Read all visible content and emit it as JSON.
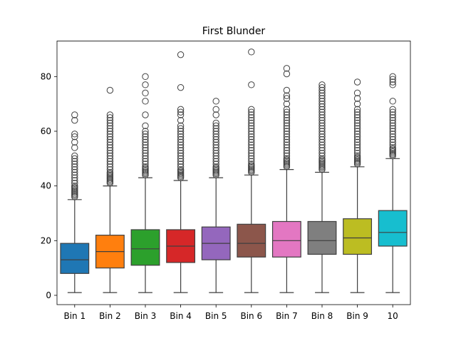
{
  "chart_data": {
    "type": "box",
    "title": "First Blunder",
    "xlabel": "",
    "ylabel": "",
    "ylim": [
      -3.4,
      93.0
    ],
    "yticks": [
      0,
      20,
      40,
      60,
      80
    ],
    "grid": false,
    "categories": [
      "Bin 1",
      "Bin 2",
      "Bin 3",
      "Bin 4",
      "Bin 5",
      "Bin 6",
      "Bin 7",
      "Bin 8",
      "Bin 9",
      "10"
    ],
    "colors": [
      "#1f77b4",
      "#ff7f0e",
      "#2ca02c",
      "#d62728",
      "#9467bd",
      "#8c564b",
      "#e377c2",
      "#7f7f7f",
      "#bcbd22",
      "#17becf"
    ],
    "boxes": [
      {
        "whislo": 1,
        "q1": 8,
        "med": 13,
        "q3": 19,
        "whishi": 35,
        "fliers": [
          36,
          36.5,
          37,
          37.5,
          38,
          38.5,
          39,
          39.5,
          40,
          41,
          42,
          43,
          44,
          45,
          46,
          47,
          48,
          49,
          50,
          51,
          54,
          56,
          58,
          59,
          64,
          66
        ]
      },
      {
        "whislo": 1,
        "q1": 10,
        "med": 16,
        "q3": 22,
        "whishi": 40,
        "fliers": [
          41,
          41.5,
          42,
          42.5,
          43,
          43.5,
          44,
          44.5,
          45,
          46,
          47,
          48,
          49,
          50,
          51,
          52,
          53,
          54,
          55,
          56,
          57,
          58,
          59,
          60,
          61,
          62,
          63,
          64,
          65,
          66,
          75
        ]
      },
      {
        "whislo": 1,
        "q1": 11,
        "med": 17,
        "q3": 24,
        "whishi": 43,
        "fliers": [
          44,
          44.5,
          45,
          45.5,
          46,
          46.5,
          47,
          48,
          49,
          50,
          51,
          52,
          53,
          54,
          55,
          56,
          57,
          58,
          59,
          60,
          62,
          66,
          71,
          74,
          77,
          80
        ]
      },
      {
        "whislo": 1,
        "q1": 12,
        "med": 18,
        "q3": 24,
        "whishi": 42,
        "fliers": [
          43,
          43.5,
          44,
          44.5,
          45,
          45.5,
          46,
          47,
          48,
          49,
          50,
          51,
          52,
          53,
          54,
          55,
          56,
          57,
          58,
          59,
          60,
          61,
          62,
          64,
          66,
          67,
          68,
          76,
          88
        ]
      },
      {
        "whislo": 1,
        "q1": 13,
        "med": 19,
        "q3": 25,
        "whishi": 43,
        "fliers": [
          44,
          44.5,
          45,
          45.5,
          46,
          46.5,
          47,
          48,
          49,
          50,
          51,
          52,
          53,
          54,
          55,
          56,
          57,
          58,
          59,
          60,
          61,
          62,
          63,
          66,
          68,
          71
        ]
      },
      {
        "whislo": 1,
        "q1": 14,
        "med": 19,
        "q3": 26,
        "whishi": 44,
        "fliers": [
          45,
          45.5,
          46,
          46.5,
          47,
          47.5,
          48,
          49,
          50,
          51,
          52,
          53,
          54,
          55,
          56,
          57,
          58,
          59,
          60,
          61,
          62,
          63,
          64,
          65,
          66,
          67,
          68,
          77,
          89
        ]
      },
      {
        "whislo": 1,
        "q1": 14,
        "med": 20,
        "q3": 27,
        "whishi": 46,
        "fliers": [
          47,
          47.5,
          48,
          48.5,
          49,
          49.5,
          50,
          51,
          52,
          53,
          54,
          55,
          56,
          57,
          58,
          59,
          60,
          61,
          62,
          63,
          64,
          65,
          66,
          67,
          68,
          70,
          72,
          73,
          75,
          81,
          83
        ]
      },
      {
        "whislo": 1,
        "q1": 15,
        "med": 20,
        "q3": 27,
        "whishi": 45,
        "fliers": [
          46,
          46.5,
          47,
          47.5,
          48,
          48.5,
          49,
          49.5,
          50,
          51,
          52,
          53,
          54,
          55,
          56,
          57,
          58,
          59,
          60,
          61,
          62,
          63,
          64,
          65,
          66,
          67,
          68,
          69,
          70,
          71,
          72,
          73,
          74,
          75,
          76,
          77
        ]
      },
      {
        "whislo": 1,
        "q1": 15,
        "med": 21,
        "q3": 28,
        "whishi": 47,
        "fliers": [
          48,
          48.5,
          49,
          49.5,
          50,
          50.5,
          51,
          52,
          53,
          54,
          55,
          56,
          57,
          58,
          59,
          60,
          61,
          62,
          63,
          64,
          65,
          66,
          67,
          68,
          70,
          72,
          74,
          78
        ]
      },
      {
        "whislo": 1,
        "q1": 18,
        "med": 23,
        "q3": 31,
        "whishi": 50,
        "fliers": [
          51,
          51.5,
          52,
          52.5,
          53,
          53.5,
          54,
          55,
          56,
          57,
          58,
          59,
          60,
          61,
          62,
          63,
          64,
          65,
          66,
          67,
          68,
          71,
          77,
          78,
          79,
          80
        ]
      }
    ]
  }
}
